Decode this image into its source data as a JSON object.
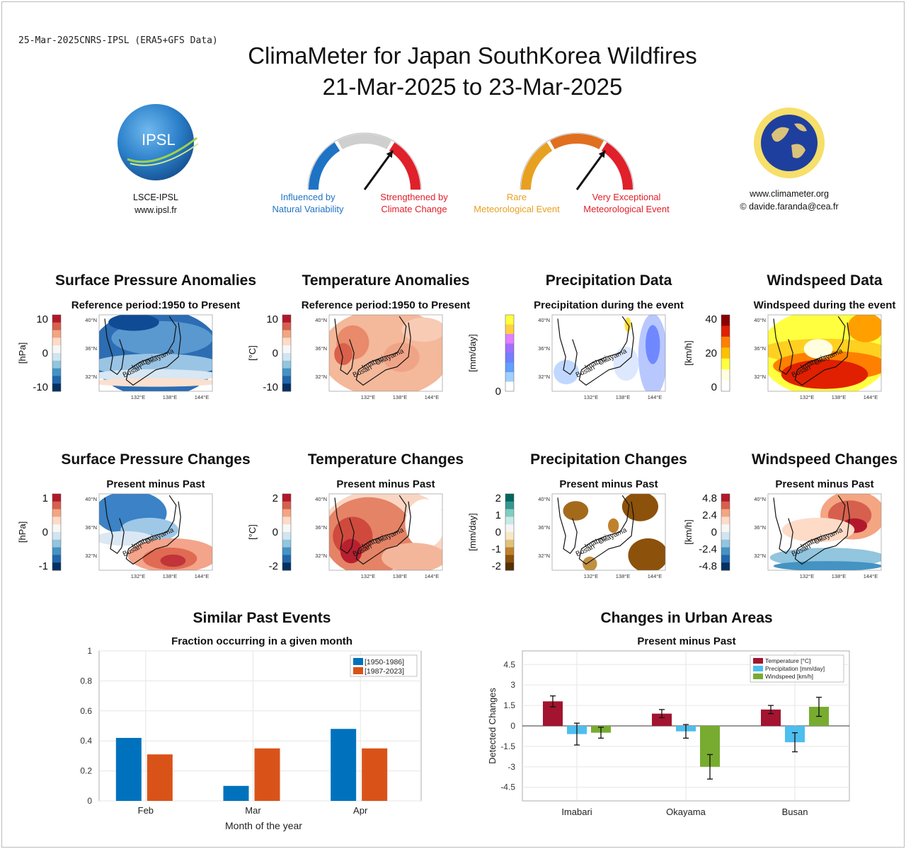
{
  "header": {
    "stamp": "25-Mar-2025CNRS-IPSL (ERA5+GFS Data)",
    "title_line1": "ClimaMeter for Japan SouthKorea Wildfires",
    "title_line2": "21-Mar-2025 to 23-Mar-2025"
  },
  "logos": {
    "ipsl_text": "IPSL",
    "ipsl_caption1": "LSCE-IPSL",
    "ipsl_caption2": "www.ipsl.fr",
    "climameter_caption1": "www.climameter.org",
    "climameter_caption2": "© davide.faranda@cea.fr"
  },
  "gauges": [
    {
      "left_label1": "Influenced by",
      "left_label2": "Natural Variability",
      "left_color": "#1f73c4",
      "right_label1": "Strengthened by",
      "right_label2": "Climate Change",
      "right_color": "#e0202a",
      "needle_fraction": 0.7
    },
    {
      "left_label1": "Rare",
      "left_label2": "Meteorological Event",
      "left_color": "#e8a020",
      "right_label1": "Very Exceptional",
      "right_label2": "Meteorological Event",
      "right_color": "#e0202a",
      "needle_fraction": 0.7
    }
  ],
  "map_panels": [
    {
      "title": "Surface Pressure Anomalies",
      "subtitle": "Reference period:1950 to Present",
      "unit": "[hPa]",
      "ticks": [
        "10",
        "5",
        "0",
        "-5",
        "-10"
      ],
      "shown_ticks": [
        "10",
        "0",
        "-10"
      ],
      "colormap": "div_bwr",
      "field": "pressure_anom"
    },
    {
      "title": "Temperature Anomalies",
      "subtitle": "Reference period:1950 to Present",
      "unit": "[°C]",
      "ticks": [
        "10",
        "0",
        "-10"
      ],
      "shown_ticks": [
        "10",
        "0",
        "-10"
      ],
      "colormap": "div_bwr",
      "field": "temp_anom"
    },
    {
      "title": "Precipitation Data",
      "subtitle": "Precipitation during the event",
      "unit": "[mm/day]",
      "ticks": [
        "0"
      ],
      "shown_ticks": [
        "0"
      ],
      "colormap": "precip",
      "field": "precip"
    },
    {
      "title": "Windspeed Data",
      "subtitle": "Windspeed during the event",
      "unit": "[km/h]",
      "ticks": [
        "40",
        "20",
        "0"
      ],
      "shown_ticks": [
        "40",
        "20",
        "0"
      ],
      "colormap": "wind",
      "field": "wind"
    },
    {
      "title": "Surface Pressure Changes",
      "subtitle": "Present minus Past",
      "unit": "[hPa]",
      "ticks": [
        "1",
        "0",
        "-1"
      ],
      "shown_ticks": [
        "1",
        "0",
        "-1"
      ],
      "colormap": "div_bwr",
      "field": "pressure_change"
    },
    {
      "title": "Temperature Changes",
      "subtitle": "Present minus Past",
      "unit": "[°C]",
      "ticks": [
        "2",
        "0",
        "-2"
      ],
      "shown_ticks": [
        "2",
        "0",
        "-2"
      ],
      "colormap": "div_bwr",
      "field": "temp_change"
    },
    {
      "title": "Precipitation Changes",
      "subtitle": "Present minus Past",
      "unit": "[mm/day]",
      "ticks": [
        "2",
        "1",
        "0",
        "-1",
        "-2"
      ],
      "shown_ticks": [
        "2",
        "1",
        "0",
        "-1",
        "-2"
      ],
      "colormap": "brbg",
      "field": "precip_change"
    },
    {
      "title": "Windspeed Changes",
      "subtitle": "Present minus Past",
      "unit": "[km/h]",
      "ticks": [
        "4.8",
        "2.4",
        "0",
        "-2.4",
        "-4.8"
      ],
      "shown_ticks": [
        "4.8",
        "2.4",
        "0",
        "-2.4",
        "-4.8"
      ],
      "colormap": "div_bwr",
      "field": "wind_change"
    }
  ],
  "map_axes": {
    "lat_ticks": [
      "40°N",
      "36°N",
      "32°N"
    ],
    "lon_ticks": [
      "132°E",
      "138°E",
      "144°E"
    ],
    "city_labels": [
      "Imabari",
      "Okayama",
      "Busan"
    ]
  },
  "chart_data": [
    {
      "type": "bar",
      "title": "Similar Past Events",
      "subtitle": "Fraction occurring in a given month",
      "xlabel": "Month of the year",
      "ylabel": "",
      "categories": [
        "Feb",
        "Mar",
        "Apr"
      ],
      "series": [
        {
          "name": "[1950-1986]",
          "values": [
            0.42,
            0.1,
            0.48
          ],
          "color": "#0072bd"
        },
        {
          "name": "[1987-2023]",
          "values": [
            0.31,
            0.35,
            0.35
          ],
          "color": "#d95319"
        }
      ],
      "ylim": [
        0,
        1
      ],
      "yticks": [
        "0",
        "0.2",
        "0.4",
        "0.6",
        "0.8",
        "1"
      ],
      "legend": "top-right",
      "grid": true
    },
    {
      "type": "bar",
      "title": "Changes in Urban Areas",
      "subtitle": "Present minus Past",
      "xlabel": "",
      "ylabel": "Detected Changes",
      "categories": [
        "Imabari",
        "Okayama",
        "Busan"
      ],
      "series": [
        {
          "name": "Temperature [°C]",
          "values": [
            1.8,
            0.9,
            1.2
          ],
          "err": [
            0.4,
            0.3,
            0.3
          ],
          "color": "#a2142f"
        },
        {
          "name": "Precipitation [mm/day]",
          "values": [
            -0.6,
            -0.4,
            -1.2
          ],
          "err": [
            0.8,
            0.5,
            0.7
          ],
          "color": "#4dbeee"
        },
        {
          "name": "Windspeed [km/h]",
          "values": [
            -0.5,
            -3.0,
            1.4
          ],
          "err": [
            0.4,
            0.9,
            0.7
          ],
          "color": "#77ac30"
        }
      ],
      "ylim": [
        -5.5,
        5.5
      ],
      "yticks": [
        "4.5",
        "3",
        "1.5",
        "0",
        "-1.5",
        "-3",
        "-4.5"
      ],
      "legend": "top-right",
      "grid": true
    }
  ]
}
